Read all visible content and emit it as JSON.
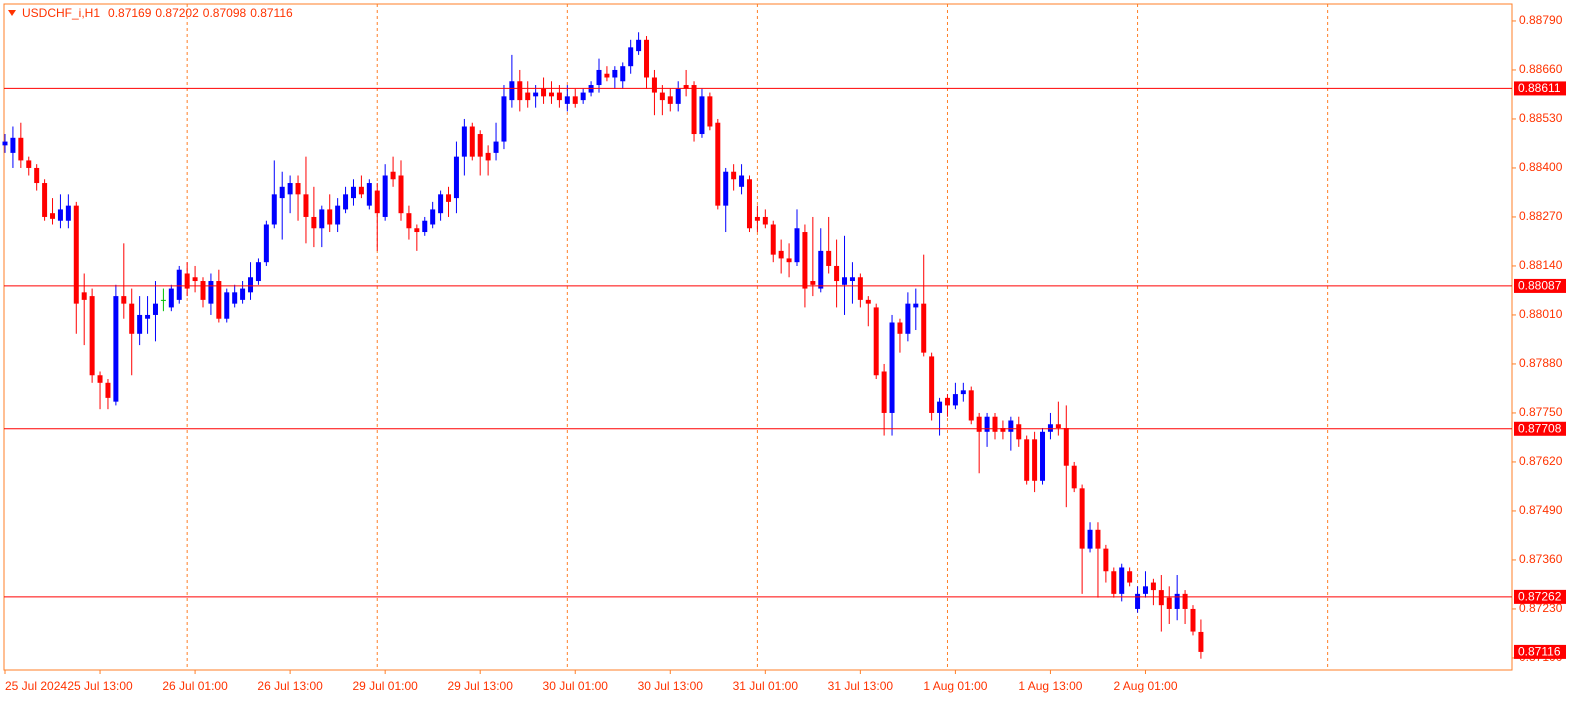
{
  "chart_data": {
    "type": "candlestick",
    "title": "USDCHF_i,H1",
    "up_color": "#0000ff",
    "down_color": "#ff0000",
    "doji_color": "#00c000",
    "level_color": "#ff0000",
    "grid": true,
    "ylim": [
      0.87068,
      0.88835
    ],
    "yticks": [
      {
        "value": 0.8879,
        "label": "0.88790"
      },
      {
        "value": 0.8866,
        "label": "0.88660"
      },
      {
        "value": 0.8853,
        "label": "0.88530"
      },
      {
        "value": 0.884,
        "label": "0.88400"
      },
      {
        "value": 0.8827,
        "label": "0.88270"
      },
      {
        "value": 0.8814,
        "label": "0.88140"
      },
      {
        "value": 0.8801,
        "label": "0.88010"
      },
      {
        "value": 0.8788,
        "label": "0.87880"
      },
      {
        "value": 0.8775,
        "label": "0.87750"
      },
      {
        "value": 0.8762,
        "label": "0.87620"
      },
      {
        "value": 0.8749,
        "label": "0.87490"
      },
      {
        "value": 0.8736,
        "label": "0.87360"
      },
      {
        "value": 0.8723,
        "label": "0.87230"
      },
      {
        "value": 0.871,
        "label": "0.87100"
      }
    ],
    "levels": [
      0.88611,
      0.88087,
      0.87708,
      0.87262
    ],
    "categories": [
      "25 Jul 2024",
      null,
      null,
      null,
      null,
      null,
      null,
      null,
      null,
      null,
      null,
      null,
      "25 Jul 13:00",
      null,
      null,
      null,
      null,
      null,
      null,
      null,
      null,
      null,
      null,
      null,
      "26 Jul 01:00",
      null,
      null,
      null,
      null,
      null,
      null,
      null,
      null,
      null,
      null,
      null,
      "26 Jul 13:00",
      null,
      null,
      null,
      null,
      null,
      null,
      null,
      null,
      null,
      null,
      null,
      "29 Jul 01:00",
      null,
      null,
      null,
      null,
      null,
      null,
      null,
      null,
      null,
      null,
      null,
      "29 Jul 13:00",
      null,
      null,
      null,
      null,
      null,
      null,
      null,
      null,
      null,
      null,
      null,
      "30 Jul 01:00",
      null,
      null,
      null,
      null,
      null,
      null,
      null,
      null,
      null,
      null,
      null,
      "30 Jul 13:00",
      null,
      null,
      null,
      null,
      null,
      null,
      null,
      null,
      null,
      null,
      null,
      "31 Jul 01:00",
      null,
      null,
      null,
      null,
      null,
      null,
      null,
      null,
      null,
      null,
      null,
      "31 Jul 13:00",
      null,
      null,
      null,
      null,
      null,
      null,
      null,
      null,
      null,
      null,
      null,
      "1 Aug 01:00",
      null,
      null,
      null,
      null,
      null,
      null,
      null,
      null,
      null,
      null,
      null,
      "1 Aug 13:00",
      null,
      null,
      null,
      null,
      null,
      null,
      null,
      null,
      null,
      null,
      null,
      "2 Aug 01:00",
      null,
      null,
      null,
      null,
      null,
      null,
      null
    ],
    "open": [
      0.8846,
      0.8844,
      0.8848,
      0.8842,
      0.884,
      0.8836,
      0.8828,
      0.8826,
      0.8826,
      0.883,
      0.8807,
      0.8806,
      0.8785,
      0.8783,
      0.8778,
      0.8806,
      0.8804,
      0.8796,
      0.88,
      0.8801,
      0.8805,
      0.8803,
      0.8805,
      0.8812,
      0.8811,
      0.881,
      0.8804,
      0.881,
      0.88,
      0.8804,
      0.8805,
      0.8807,
      0.881,
      0.8815,
      0.8825,
      0.8832,
      0.8833,
      0.8836,
      0.8833,
      0.8827,
      0.8824,
      0.8829,
      0.8825,
      0.8829,
      0.8832,
      0.8835,
      0.883,
      0.8834,
      0.8827,
      0.8839,
      0.8838,
      0.8828,
      0.8824,
      0.8823,
      0.8825,
      0.8828,
      0.8833,
      0.8832,
      0.8843,
      0.8851,
      0.8849,
      0.8844,
      0.8844,
      0.8847,
      0.8858,
      0.8863,
      0.886,
      0.8859,
      0.8861,
      0.886,
      0.886,
      0.8857,
      0.8859,
      0.8858,
      0.886,
      0.8862,
      0.8865,
      0.8864,
      0.8863,
      0.8867,
      0.8871,
      0.8874,
      0.8864,
      0.886,
      0.8859,
      0.8857,
      0.8862,
      0.8862,
      0.8849,
      0.8859,
      0.8852,
      0.883,
      0.8839,
      0.8835,
      0.8837,
      0.8827,
      0.8827,
      0.8825,
      0.8818,
      0.8816,
      0.8815,
      0.8823,
      0.881,
      0.8808,
      0.8818,
      0.8814,
      0.8809,
      0.881,
      0.8811,
      0.8805,
      0.8803,
      0.8786,
      0.8775,
      0.8799,
      0.8796,
      0.8803,
      0.8804,
      0.879,
      0.8775,
      0.8779,
      0.8777,
      0.878,
      0.8781,
      0.8774,
      0.877,
      0.8774,
      0.8771,
      0.877,
      0.8772,
      0.8768,
      0.8768,
      0.8757,
      0.877,
      0.8772,
      0.8771,
      0.8761,
      0.8755,
      0.8739,
      0.8744,
      0.8739,
      0.8733,
      0.8727,
      0.8733,
      0.8723,
      0.8727,
      0.873,
      0.8728,
      0.8726,
      0.8723,
      0.8727,
      0.8723,
      0.87169
    ],
    "high": [
      0.8849,
      0.8851,
      0.8852,
      0.8843,
      0.8841,
      0.8837,
      0.8832,
      0.8833,
      0.8833,
      0.8831,
      0.8812,
      0.8808,
      0.8786,
      0.8784,
      0.8809,
      0.882,
      0.8808,
      0.8806,
      0.8806,
      0.881,
      0.8808,
      0.8809,
      0.8814,
      0.8815,
      0.8814,
      0.8811,
      0.8812,
      0.8813,
      0.8808,
      0.8809,
      0.881,
      0.8815,
      0.8816,
      0.8826,
      0.8842,
      0.8839,
      0.8838,
      0.8838,
      0.8843,
      0.8835,
      0.883,
      0.8833,
      0.8832,
      0.8835,
      0.8837,
      0.8838,
      0.8837,
      0.8836,
      0.8841,
      0.8843,
      0.8842,
      0.883,
      0.8825,
      0.8827,
      0.8831,
      0.8834,
      0.8835,
      0.8847,
      0.8853,
      0.8852,
      0.885,
      0.8846,
      0.8852,
      0.8862,
      0.887,
      0.8866,
      0.8863,
      0.8862,
      0.8864,
      0.8863,
      0.8862,
      0.8862,
      0.8861,
      0.8861,
      0.8863,
      0.8869,
      0.8867,
      0.8867,
      0.8868,
      0.8874,
      0.8876,
      0.8875,
      0.8866,
      0.8862,
      0.8861,
      0.8863,
      0.8866,
      0.8863,
      0.8861,
      0.886,
      0.8853,
      0.884,
      0.8841,
      0.8841,
      0.8838,
      0.883,
      0.8829,
      0.8826,
      0.8821,
      0.882,
      0.8829,
      0.8825,
      0.8827,
      0.8824,
      0.8827,
      0.8821,
      0.8822,
      0.8815,
      0.8812,
      0.8806,
      0.8804,
      0.8788,
      0.8801,
      0.88,
      0.8807,
      0.8808,
      0.8817,
      0.8791,
      0.8779,
      0.878,
      0.8783,
      0.8783,
      0.8782,
      0.8775,
      0.8775,
      0.8775,
      0.8773,
      0.8774,
      0.8774,
      0.8769,
      0.877,
      0.8771,
      0.8775,
      0.8778,
      0.8777,
      0.8762,
      0.8756,
      0.8746,
      0.8746,
      0.874,
      0.8734,
      0.8735,
      0.8734,
      0.8729,
      0.8733,
      0.8731,
      0.8732,
      0.8729,
      0.8732,
      0.8728,
      0.8724,
      0.87202
    ],
    "low": [
      0.8844,
      0.884,
      0.884,
      0.8838,
      0.8834,
      0.8826,
      0.8825,
      0.8824,
      0.8824,
      0.8796,
      0.8793,
      0.8783,
      0.8776,
      0.8776,
      0.8777,
      0.88,
      0.8785,
      0.8793,
      0.8796,
      0.8794,
      0.8802,
      0.8802,
      0.8804,
      0.8806,
      0.8807,
      0.8803,
      0.8801,
      0.8799,
      0.8799,
      0.8803,
      0.8804,
      0.8805,
      0.8809,
      0.8814,
      0.8824,
      0.8821,
      0.8828,
      0.8826,
      0.882,
      0.8819,
      0.8819,
      0.8823,
      0.8823,
      0.8828,
      0.883,
      0.8832,
      0.8829,
      0.8818,
      0.8826,
      0.8835,
      0.8826,
      0.8821,
      0.8818,
      0.8822,
      0.8824,
      0.8826,
      0.8827,
      0.8828,
      0.8838,
      0.8842,
      0.8838,
      0.8838,
      0.8842,
      0.8845,
      0.8856,
      0.8855,
      0.8856,
      0.8856,
      0.8857,
      0.8857,
      0.8856,
      0.8855,
      0.8856,
      0.8857,
      0.8859,
      0.886,
      0.8863,
      0.8861,
      0.8861,
      0.8865,
      0.887,
      0.8861,
      0.8854,
      0.8854,
      0.8855,
      0.8855,
      0.8859,
      0.8847,
      0.8848,
      0.885,
      0.8829,
      0.8823,
      0.8834,
      0.8833,
      0.8823,
      0.8823,
      0.8824,
      0.8815,
      0.8812,
      0.8811,
      0.8814,
      0.8803,
      0.8806,
      0.8807,
      0.8812,
      0.8803,
      0.8801,
      0.8804,
      0.8803,
      0.8798,
      0.8784,
      0.8769,
      0.8769,
      0.8791,
      0.8794,
      0.8797,
      0.879,
      0.8773,
      0.8769,
      0.8774,
      0.8776,
      0.8778,
      0.8772,
      0.8759,
      0.8766,
      0.8768,
      0.8768,
      0.8765,
      0.8766,
      0.8756,
      0.8754,
      0.8756,
      0.8768,
      0.8769,
      0.875,
      0.8754,
      0.8727,
      0.8738,
      0.8726,
      0.873,
      0.8726,
      0.8725,
      0.8729,
      0.8722,
      0.8726,
      0.8724,
      0.8717,
      0.8719,
      0.872,
      0.8719,
      0.8716,
      0.87098
    ],
    "close": [
      0.8847,
      0.8848,
      0.8842,
      0.884,
      0.8836,
      0.8827,
      0.88265,
      0.8829,
      0.883,
      0.8804,
      0.8805,
      0.8785,
      0.8783,
      0.8779,
      0.8806,
      0.8804,
      0.8796,
      0.8801,
      0.8801,
      0.8804,
      0.8805,
      0.8808,
      0.8813,
      0.8808,
      0.881,
      0.8805,
      0.881,
      0.88,
      0.8807,
      0.8807,
      0.8808,
      0.8811,
      0.8815,
      0.8825,
      0.8833,
      0.8835,
      0.8836,
      0.8833,
      0.8827,
      0.8824,
      0.8829,
      0.8825,
      0.883,
      0.8833,
      0.8835,
      0.8833,
      0.8836,
      0.8828,
      0.8838,
      0.8837,
      0.8828,
      0.8824,
      0.8823,
      0.8826,
      0.8829,
      0.8833,
      0.8831,
      0.8843,
      0.8851,
      0.8843,
      0.8843,
      0.8842,
      0.8847,
      0.8859,
      0.8863,
      0.8858,
      0.8858,
      0.886,
      0.8859,
      0.8859,
      0.8858,
      0.8859,
      0.8857,
      0.886,
      0.8862,
      0.8866,
      0.8864,
      0.8866,
      0.8867,
      0.8872,
      0.8874,
      0.8864,
      0.886,
      0.8858,
      0.8857,
      0.8861,
      0.8861,
      0.8849,
      0.8859,
      0.8851,
      0.883,
      0.8839,
      0.8837,
      0.8838,
      0.8824,
      0.8826,
      0.8825,
      0.8817,
      0.8816,
      0.8815,
      0.8824,
      0.8808,
      0.8809,
      0.8818,
      0.8814,
      0.881,
      0.8811,
      0.8811,
      0.8805,
      0.8804,
      0.8785,
      0.8775,
      0.8799,
      0.8796,
      0.8804,
      0.8804,
      0.8791,
      0.8775,
      0.8778,
      0.8777,
      0.878,
      0.8781,
      0.8773,
      0.877,
      0.8774,
      0.877,
      0.877,
      0.8773,
      0.8768,
      0.8757,
      0.8757,
      0.877,
      0.8772,
      0.8771,
      0.8761,
      0.8755,
      0.8739,
      0.8744,
      0.8739,
      0.8733,
      0.8727,
      0.8734,
      0.873,
      0.8727,
      0.8729,
      0.8728,
      0.8724,
      0.8723,
      0.8727,
      0.8723,
      0.8717,
      0.87116
    ]
  }
}
